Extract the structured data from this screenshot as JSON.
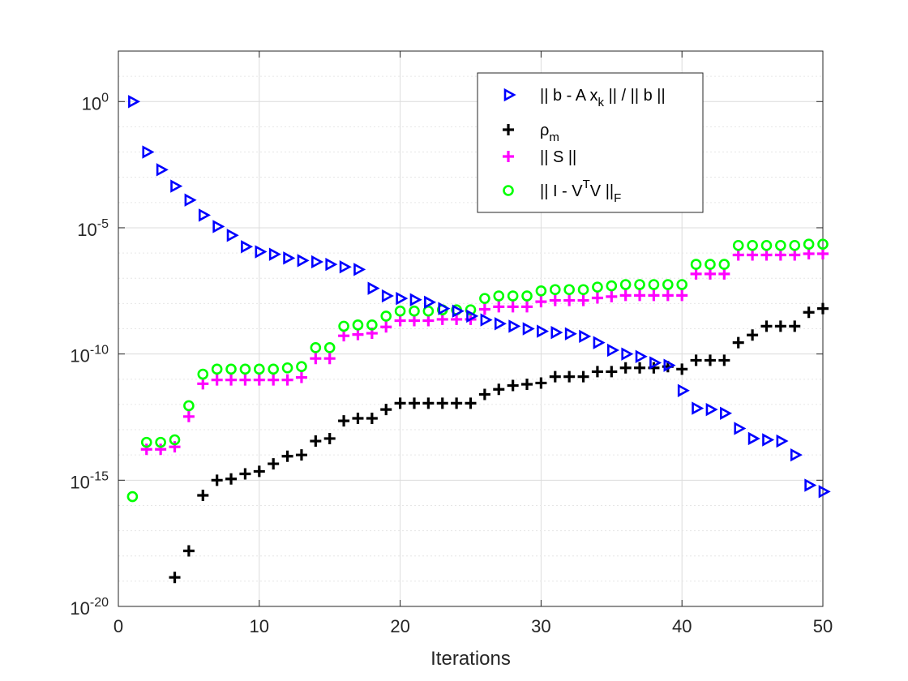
{
  "chart_data": {
    "type": "scatter",
    "title": "",
    "xlabel": "Iterations",
    "ylabel": "",
    "xlim": [
      0,
      50
    ],
    "ylim": [
      -20,
      2
    ],
    "yscale": "log",
    "grid": true,
    "minor_grid": true,
    "legend_position": "top-right",
    "x_ticks": [
      "0",
      "10",
      "20",
      "30",
      "40",
      "50"
    ],
    "y_ticks": [
      {
        "base": "10",
        "exp": "0"
      },
      {
        "base": "10",
        "exp": "-5"
      },
      {
        "base": "10",
        "exp": "-10"
      },
      {
        "base": "10",
        "exp": "-15"
      },
      {
        "base": "10",
        "exp": "-20"
      }
    ],
    "series": [
      {
        "name": "|| b - A x_k || / || b ||",
        "legend": {
          "pre": "|| b - A x",
          "sub": "k",
          "post": " || / || b ||"
        },
        "marker": "triangle-right",
        "color": "#0000ff",
        "x": [
          1,
          2,
          3,
          4,
          5,
          6,
          7,
          8,
          9,
          10,
          11,
          12,
          13,
          14,
          15,
          16,
          17,
          18,
          19,
          20,
          21,
          22,
          23,
          24,
          25,
          26,
          27,
          28,
          29,
          30,
          31,
          32,
          33,
          34,
          35,
          36,
          37,
          38,
          39,
          40,
          41,
          42,
          43,
          44,
          45,
          46,
          47,
          48,
          49,
          50
        ],
        "log10_values": [
          0.0,
          -2.0,
          -2.7,
          -3.35,
          -3.9,
          -4.5,
          -4.95,
          -5.3,
          -5.75,
          -5.95,
          -6.05,
          -6.2,
          -6.3,
          -6.35,
          -6.45,
          -6.55,
          -6.65,
          -7.4,
          -7.7,
          -7.8,
          -7.85,
          -7.95,
          -8.2,
          -8.3,
          -8.5,
          -8.65,
          -8.8,
          -8.9,
          -9.0,
          -9.1,
          -9.15,
          -9.2,
          -9.3,
          -9.55,
          -9.85,
          -10.0,
          -10.1,
          -10.35,
          -10.45,
          -11.45,
          -12.15,
          -12.2,
          -12.35,
          -12.95,
          -13.35,
          -13.4,
          -13.45,
          -14.0,
          -15.2,
          -15.45
        ]
      },
      {
        "name": "ρ_m",
        "legend": {
          "pre": "ρ",
          "sub": "m",
          "post": ""
        },
        "marker": "plus",
        "color": "#000000",
        "x": [
          4,
          5,
          6,
          7,
          8,
          9,
          10,
          11,
          12,
          13,
          14,
          15,
          16,
          17,
          18,
          19,
          20,
          21,
          22,
          23,
          24,
          25,
          26,
          27,
          28,
          29,
          30,
          31,
          32,
          33,
          34,
          35,
          36,
          37,
          38,
          39,
          40,
          41,
          42,
          43,
          44,
          45,
          46,
          47,
          48,
          49,
          50
        ],
        "log10_values": [
          -18.85,
          -17.8,
          -15.6,
          -15.0,
          -14.95,
          -14.75,
          -14.65,
          -14.35,
          -14.05,
          -14.0,
          -13.45,
          -13.35,
          -12.65,
          -12.55,
          -12.55,
          -12.2,
          -11.95,
          -11.95,
          -11.95,
          -11.95,
          -11.95,
          -11.95,
          -11.6,
          -11.4,
          -11.25,
          -11.2,
          -11.15,
          -10.9,
          -10.9,
          -10.9,
          -10.7,
          -10.7,
          -10.55,
          -10.55,
          -10.55,
          -10.5,
          -10.6,
          -10.25,
          -10.25,
          -10.25,
          -9.55,
          -9.25,
          -8.9,
          -8.9,
          -8.9,
          -8.35,
          -8.2
        ]
      },
      {
        "name": "|| S ||",
        "legend": {
          "pre": "|| S ||",
          "sub": "",
          "post": ""
        },
        "marker": "plus",
        "color": "#ff00ff",
        "x": [
          2,
          3,
          4,
          5,
          6,
          7,
          8,
          9,
          10,
          11,
          12,
          13,
          14,
          15,
          16,
          17,
          18,
          19,
          20,
          21,
          22,
          23,
          24,
          25,
          26,
          27,
          28,
          29,
          30,
          31,
          32,
          33,
          34,
          35,
          36,
          37,
          38,
          39,
          40,
          41,
          42,
          43,
          44,
          45,
          46,
          47,
          48,
          49,
          50
        ],
        "log10_values": [
          -13.65,
          -13.65,
          -13.55,
          -12.35,
          -11.05,
          -10.9,
          -10.9,
          -10.9,
          -10.9,
          -10.9,
          -10.9,
          -10.8,
          -10.05,
          -10.05,
          -9.15,
          -9.1,
          -9.05,
          -8.8,
          -8.55,
          -8.55,
          -8.55,
          -8.5,
          -8.5,
          -8.5,
          -8.1,
          -8.0,
          -8.0,
          -8.0,
          -7.8,
          -7.75,
          -7.75,
          -7.75,
          -7.65,
          -7.6,
          -7.55,
          -7.55,
          -7.55,
          -7.55,
          -7.55,
          -6.7,
          -6.7,
          -6.7,
          -5.95,
          -5.95,
          -5.95,
          -5.95,
          -5.95,
          -5.9,
          -5.9
        ]
      },
      {
        "name": "|| I - V^T V ||_F",
        "legend": {
          "pre": "|| I - V",
          "sup": "T",
          "mid": "V ||",
          "sub": "F",
          "post": ""
        },
        "marker": "circle",
        "color": "#00ff00",
        "x": [
          1,
          2,
          3,
          4,
          5,
          6,
          7,
          8,
          9,
          10,
          11,
          12,
          13,
          14,
          15,
          16,
          17,
          18,
          19,
          20,
          21,
          22,
          23,
          24,
          25,
          26,
          27,
          28,
          29,
          30,
          31,
          32,
          33,
          34,
          35,
          36,
          37,
          38,
          39,
          40,
          41,
          42,
          43,
          44,
          45,
          46,
          47,
          48,
          49,
          50
        ],
        "log10_values": [
          -15.65,
          -13.5,
          -13.5,
          -13.4,
          -12.05,
          -10.8,
          -10.6,
          -10.6,
          -10.6,
          -10.6,
          -10.6,
          -10.55,
          -10.5,
          -9.75,
          -9.75,
          -8.9,
          -8.85,
          -8.85,
          -8.5,
          -8.3,
          -8.3,
          -8.3,
          -8.25,
          -8.25,
          -8.25,
          -7.8,
          -7.7,
          -7.7,
          -7.7,
          -7.5,
          -7.45,
          -7.45,
          -7.45,
          -7.35,
          -7.3,
          -7.25,
          -7.25,
          -7.25,
          -7.25,
          -7.25,
          -6.45,
          -6.45,
          -6.45,
          -5.7,
          -5.7,
          -5.7,
          -5.7,
          -5.7,
          -5.65,
          -5.65
        ]
      }
    ]
  }
}
